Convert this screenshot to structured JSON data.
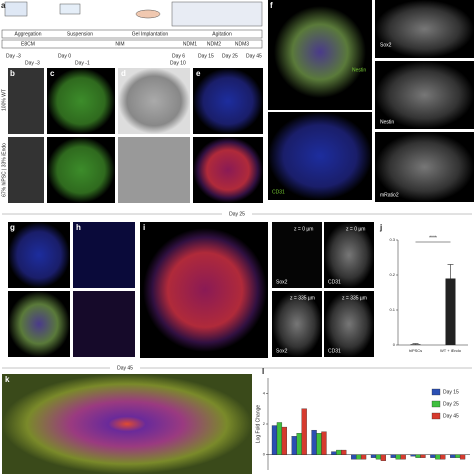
{
  "timeline": {
    "stages": [
      "Aggregation",
      "Suspension",
      "Gel Implantation",
      "Agitation"
    ],
    "media": [
      "E8CM",
      "NIM",
      "NDM1",
      "NDM2",
      "NDM3"
    ],
    "days": [
      "Day -3",
      "Day 0",
      "Day 6",
      "Day 15",
      "Day 25",
      "Day 45"
    ]
  },
  "row1": {
    "days": [
      "Day -3",
      "Day -1",
      "Day 10"
    ],
    "conditions": [
      "100% WT",
      "67% hiPSC | 33% iEndo"
    ],
    "markers": [
      "Nestin",
      "CD31",
      "Sox2",
      "Nestin",
      "mRatio2"
    ]
  },
  "dividers": [
    "Day 25",
    "Day 45"
  ],
  "panel_i": {
    "labels": [
      "z = 0 µm",
      "z = 0 µm",
      "z = 335 µm",
      "z = 335 µm"
    ],
    "markers": [
      "Sox2",
      "CD31",
      "Sox2",
      "CD31"
    ]
  },
  "chart_j": {
    "type": "bar",
    "categories": [
      "hiPSCs",
      "WT + iEndo"
    ],
    "values": [
      0.002,
      0.19
    ],
    "errors": [
      0.002,
      0.04
    ],
    "ylim": [
      0,
      0.3
    ],
    "yticks": [
      0,
      0.1,
      0.2,
      0.3
    ],
    "significance": "****",
    "color": "#222"
  },
  "chart_l": {
    "type": "bar",
    "ylabel": "Log Fold Change",
    "ylim": [
      -1,
      5
    ],
    "yticks": [
      0,
      2,
      4
    ],
    "series": [
      {
        "name": "Day 15",
        "color": "#2b4fb3",
        "values": [
          1.9,
          1.2,
          1.6,
          0.2,
          -0.3,
          -0.2,
          -0.2,
          -0.1,
          -0.2,
          -0.2
        ]
      },
      {
        "name": "Day 25",
        "color": "#3fbf3f",
        "values": [
          2.1,
          1.4,
          1.4,
          0.3,
          -0.3,
          -0.3,
          -0.3,
          -0.2,
          -0.3,
          -0.2
        ]
      },
      {
        "name": "Day 45",
        "color": "#d63a2e",
        "values": [
          1.8,
          3.0,
          1.5,
          0.3,
          -0.3,
          -0.4,
          -0.3,
          -0.2,
          -0.3,
          -0.3
        ]
      }
    ]
  }
}
